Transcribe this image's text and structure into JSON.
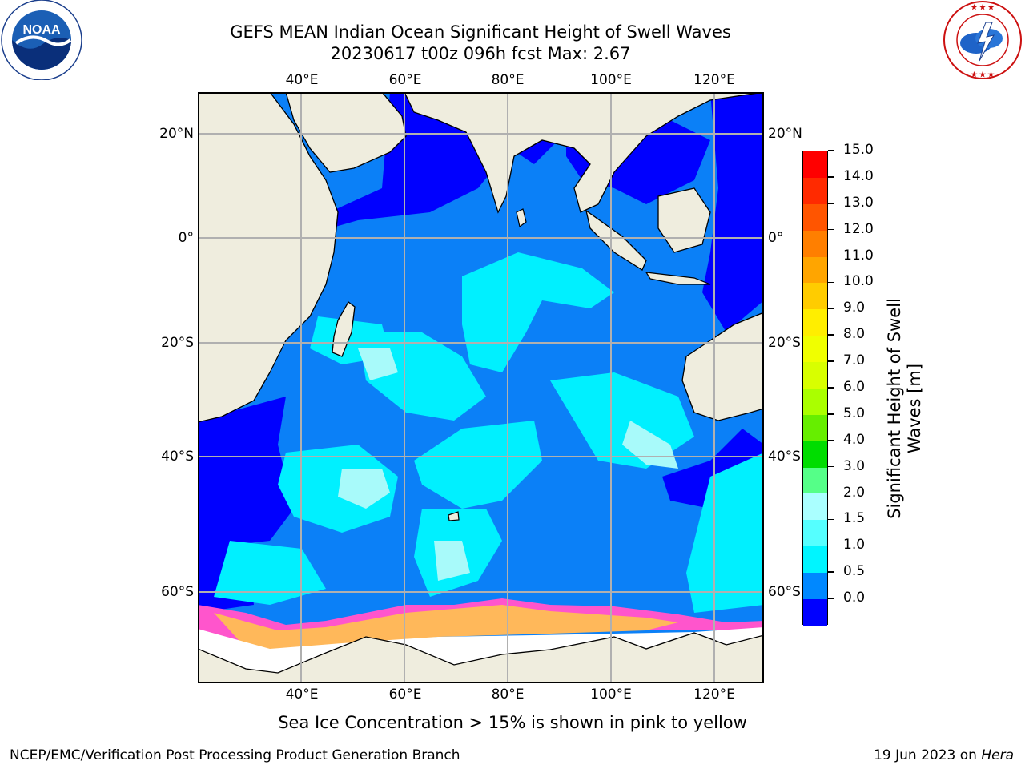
{
  "header": {
    "title_line1": "GEFS MEAN Indian Ocean Significant Height of Swell Waves",
    "title_line2": "20230617 t00z 096h fcst   Max: 2.67"
  },
  "logos": {
    "noaa_text": "NOAA",
    "noaa_ring": "NATIONAL OCEANIC AND ATMOSPHERIC ADMINISTRATION · U.S. DEPARTMENT OF COMMERCE",
    "nws_ring": "NATIONAL WEATHER SERVICE"
  },
  "axes": {
    "lon_top": [
      "40°E",
      "60°E",
      "80°E",
      "100°E",
      "120°E"
    ],
    "lon_bottom": [
      "40°E",
      "60°E",
      "80°E",
      "100°E",
      "120°E"
    ],
    "lat_left": [
      "20°N",
      "0°",
      "20°S",
      "40°S",
      "60°S"
    ],
    "lat_right": [
      "20°N",
      "0°",
      "20°S",
      "40°S",
      "60°S"
    ]
  },
  "colorbar": {
    "label_line1": "Significant Height of Swell",
    "label_line2": "Waves [m]",
    "ticks": [
      "15.0",
      "14.0",
      "13.0",
      "12.0",
      "11.0",
      "10.0",
      "9.0",
      "8.0",
      "7.0",
      "6.0",
      "5.0",
      "4.0",
      "3.0",
      "2.0",
      "1.5",
      "1.0",
      "0.5",
      "0.0"
    ],
    "colors_top_to_bottom": [
      "#ff0000",
      "#ff2a00",
      "#ff5500",
      "#ff7f00",
      "#ffa500",
      "#ffcc00",
      "#ffee00",
      "#f0ff00",
      "#d8ff00",
      "#aaff00",
      "#66ee00",
      "#00dd00",
      "#55ff88",
      "#aaffff",
      "#55ffff",
      "#00f5ff",
      "#0088ff",
      "#0000ff"
    ]
  },
  "map_colors": {
    "land": "#efedde",
    "ice_area": "#ffffff",
    "swell_0_05": "#0000ff",
    "swell_05_1": "#0b80f7",
    "swell_1_15": "#00f0ff",
    "swell_15_2": "#55f5f5",
    "swell_2_3": "#a8fafa",
    "ice_edge": "#ff55cc",
    "ice_orange": "#ffb85a"
  },
  "caption": "Sea Ice Concentration > 15% is shown in pink to yellow",
  "footer": {
    "left": "NCEP/EMC/Verification Post Processing Product Generation Branch",
    "right_prefix": "19 Jun 2023 on ",
    "right_italic": "Hera"
  }
}
